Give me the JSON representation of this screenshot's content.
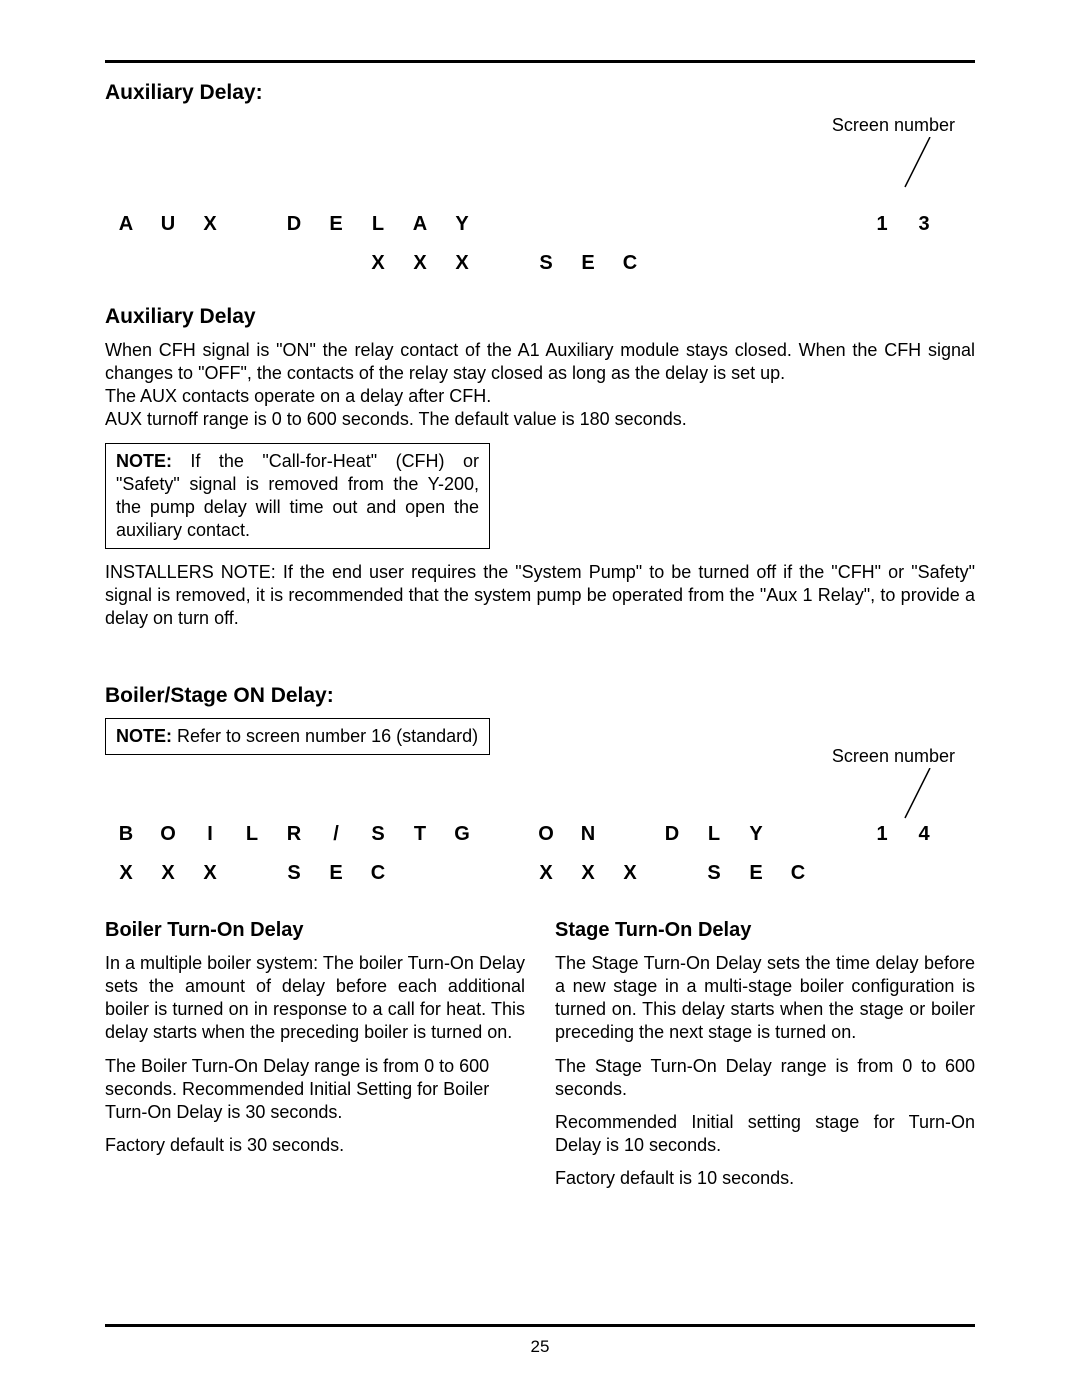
{
  "page_number": "25",
  "aux": {
    "heading_colon": "Auxiliary Delay:",
    "screen_label": "Screen number",
    "lcd_row1": [
      "A",
      "U",
      "X",
      "",
      "D",
      "E",
      "L",
      "A",
      "Y",
      "",
      "",
      "",
      "",
      "",
      "",
      "",
      "",
      "",
      "1",
      "3"
    ],
    "lcd_row2": [
      "",
      "",
      "",
      "",
      "",
      "",
      "X",
      "X",
      "X",
      "",
      "S",
      "E",
      "C",
      "",
      "",
      "",
      "",
      "",
      "",
      ""
    ],
    "heading": "Auxiliary Delay",
    "para1": "When CFH signal is \"ON\" the relay contact of the A1 Auxiliary module stays closed. When the CFH signal changes to \"OFF\", the contacts of the relay stay closed as long as the delay is set up.",
    "para2": "The AUX contacts operate on a delay after CFH.",
    "para3": "AUX turnoff range is 0 to 600 seconds. The default value is 180 seconds.",
    "note_label": "NOTE:",
    "note_text": " If the \"Call-for-Heat\" (CFH) or \"Safety\" signal is removed from the Y-200, the pump delay will time out and open the auxiliary contact.",
    "installers": "INSTALLERS NOTE: If the end user requires the \"System Pump\" to be turned off if the \"CFH\" or \"Safety\" signal is removed, it is recommended that the system pump be operated from the \"Aux 1 Relay\", to provide a delay on turn off."
  },
  "boiler": {
    "heading_colon": "Boiler/Stage ON Delay:",
    "note_label": "NOTE:",
    "note_text": " Refer to screen number 16 (standard)",
    "screen_label": "Screen number",
    "lcd_row1": [
      "B",
      "O",
      "I",
      "L",
      "R",
      "/",
      "S",
      "T",
      "G",
      "",
      "O",
      "N",
      "",
      "D",
      "L",
      "Y",
      "",
      "",
      "1",
      "4"
    ],
    "lcd_row2": [
      "X",
      "X",
      "X",
      "",
      "S",
      "E",
      "C",
      "",
      "",
      "",
      "X",
      "X",
      "X",
      "",
      "S",
      "E",
      "C",
      "",
      "",
      ""
    ],
    "left_heading": "Boiler Turn-On Delay",
    "left_p1": "In a multiple boiler system: The boiler Turn-On Delay sets the amount of delay before each additional boiler is turned on in response to a call for heat. This delay starts when the preceding boiler is turned on.",
    "left_p2": "The Boiler Turn-On Delay range is from 0 to 600 seconds. Recommended Initial Setting for Boiler Turn-On Delay is 30 seconds.",
    "left_p3": "Factory default is 30 seconds.",
    "right_heading": "Stage Turn-On Delay",
    "right_p1": "The Stage Turn-On Delay sets the time delay before a new stage in a multi-stage boiler configuration is turned on. This delay starts when the stage or boiler preceding the next stage is turned on.",
    "right_p2": "The Stage Turn-On Delay range is from 0 to 600 seconds.",
    "right_p3": "Recommended Initial setting stage for Turn-On Delay is 10 seconds.",
    "right_p4": "Factory default is 10 seconds."
  }
}
